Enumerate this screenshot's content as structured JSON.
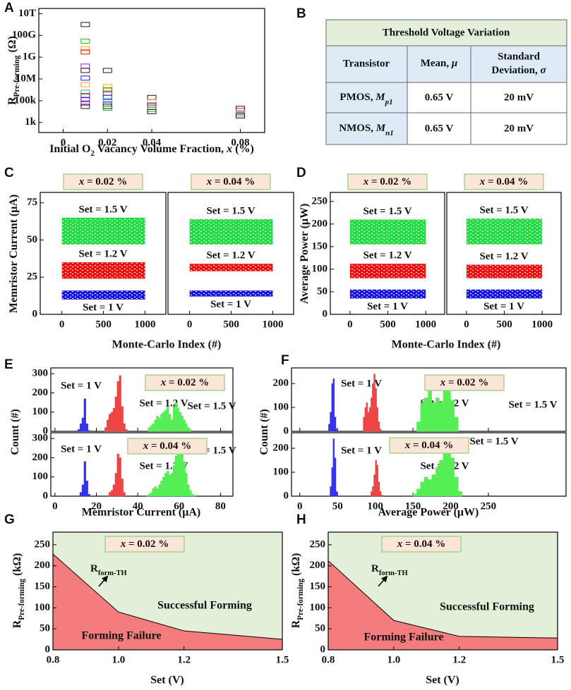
{
  "table": {
    "panel_label": "B",
    "title": "Threshold Voltage Variation",
    "columns": [
      {
        "text": "Transistor"
      },
      {
        "text": "Mean, ",
        "symbol": "μ"
      },
      {
        "text": "Standard",
        "text2": "Deviation, ",
        "symbol": "σ"
      }
    ],
    "rows": [
      {
        "name": "PMOS, ",
        "symbol": "M",
        "sub": "p1",
        "mean": "0.65 V",
        "sd": "20 mV"
      },
      {
        "name": "NMOS, ",
        "symbol": "M",
        "sub": "n1",
        "mean": "0.65 V",
        "sd": "20 mV"
      }
    ]
  },
  "chart_data": [
    {
      "type": "scatter",
      "panel_label": "A",
      "log_y": true,
      "y_label": "R",
      "y_label_sub": "Pre-forming",
      "y_label_unit": " (Ω)",
      "x_label": [
        "Initial O",
        "2",
        " Vacancy Volume Fraction, ",
        "x",
        " (%)"
      ],
      "xlim": [
        -0.011,
        0.091
      ],
      "xticks": [
        0,
        0.02,
        0.04,
        0.08
      ],
      "ylim": [
        120,
        30000000000000
      ],
      "yticks": [
        {
          "value": 1000,
          "label": "1k"
        },
        {
          "value": 100000,
          "label": "100k"
        },
        {
          "value": 10000000,
          "label": "10M"
        },
        {
          "value": 1000000000,
          "label": "1G"
        },
        {
          "value": 100000000000,
          "label": "100G"
        },
        {
          "value": 10000000000000,
          "label": "10T"
        }
      ],
      "x": [
        0.01,
        0.01,
        0.01,
        0.01,
        0.01,
        0.01,
        0.01,
        0.01,
        0.01,
        0.01,
        0.01,
        0.01,
        0.01,
        0.02,
        0.02,
        0.02,
        0.02,
        0.02,
        0.02,
        0.02,
        0.02,
        0.02,
        0.04,
        0.04,
        0.04,
        0.04,
        0.04,
        0.04,
        0.08,
        0.08,
        0.08,
        0.08,
        0.08
      ],
      "y": [
        1000000000000,
        30000000000,
        6000000000,
        3000000000,
        150000000,
        60000000,
        12000000,
        3000000,
        600000,
        300000,
        130000,
        60000,
        30000,
        60000000,
        2000000,
        1000000,
        500000,
        200000,
        100000,
        50000,
        30000,
        20000,
        200000,
        80000,
        40000,
        25000,
        16000,
        10000,
        20000,
        13000,
        8000,
        6000,
        4000
      ],
      "colors": [
        "#000000",
        "#00aa00",
        "#ff9900",
        "#cc0000",
        "#9900cc",
        "#000000",
        "#0000ff",
        "#ff9900",
        "#00aaaa",
        "#cc0000",
        "#0000ff",
        "#9900cc",
        "#000000",
        "#000000",
        "#ff9900",
        "#00aa00",
        "#cc0000",
        "#0000ff",
        "#00aaaa",
        "#9900cc",
        "#000000",
        "#00aa00",
        "#000000",
        "#ff9900",
        "#0000ff",
        "#cc0000",
        "#00aa00",
        "#000000",
        "#000000",
        "#9900cc",
        "#ff9900",
        "#00aaaa",
        "#000000"
      ]
    },
    {
      "type": "strip",
      "panel_label": "C",
      "annotation_var": "x",
      "y_label": "Memristor Current (μA)",
      "x_label": "Monte-Carlo Index (#)",
      "xlim": [
        -260,
        1250
      ],
      "xticks": [
        0,
        500,
        1000
      ],
      "ylim": [
        0,
        82
      ],
      "yticks": [
        0,
        25,
        50,
        75
      ],
      "subplots": [
        {
          "annotation": " = 0.02 %",
          "bands": [
            {
              "label": "Set = 1.5 V",
              "color": "#22dd44",
              "range": [
                47,
                65
              ]
            },
            {
              "label": "Set = 1.2 V",
              "color": "#ee1111",
              "range": [
                24,
                35
              ]
            },
            {
              "label": "Set = 1 V",
              "color": "#1a1ae0",
              "range": [
                10,
                16
              ]
            }
          ]
        },
        {
          "annotation": " = 0.04 %",
          "bands": [
            {
              "label": "Set = 1.5 V",
              "color": "#22dd44",
              "range": [
                47,
                64
              ]
            },
            {
              "label": "Set = 1.2 V",
              "color": "#ee1111",
              "range": [
                29,
                34
              ]
            },
            {
              "label": "Set = 1 V",
              "color": "#1a1ae0",
              "range": [
                12,
                16
              ]
            }
          ]
        }
      ]
    },
    {
      "type": "strip",
      "panel_label": "D",
      "annotation_var": "x",
      "y_label": "Average Power (μW)",
      "x_label": "Monte-Carlo Index (#)",
      "xlim": [
        -260,
        1250
      ],
      "xticks": [
        0,
        500,
        1000
      ],
      "ylim": [
        0,
        270
      ],
      "yticks": [
        0,
        50,
        100,
        150,
        200,
        250
      ],
      "subplots": [
        {
          "annotation": " = 0.02 %",
          "bands": [
            {
              "label": "Set = 1.5 V",
              "color": "#22dd44",
              "range": [
                155,
                210
              ]
            },
            {
              "label": "Set = 1.2 V",
              "color": "#ee1111",
              "range": [
                80,
                112
              ]
            },
            {
              "label": "Set = 1 V",
              "color": "#1a1ae0",
              "range": [
                35,
                55
              ]
            }
          ]
        },
        {
          "annotation": " = 0.04 %",
          "bands": [
            {
              "label": "Set = 1.5 V",
              "color": "#22dd44",
              "range": [
                155,
                212
              ]
            },
            {
              "label": "Set = 1.2 V",
              "color": "#ee1111",
              "range": [
                80,
                110
              ]
            },
            {
              "label": "Set = 1 V",
              "color": "#1a1ae0",
              "range": [
                35,
                55
              ]
            }
          ]
        }
      ]
    },
    {
      "type": "histogram",
      "panel_label": "E",
      "annotation_var": "x",
      "y_label": "Count (#)",
      "x_label": "Memristor Current (μA)",
      "xlim": [
        -2,
        86
      ],
      "xticks": [
        0,
        20,
        40,
        60,
        80
      ],
      "ylim": [
        0,
        330
      ],
      "yticks": [
        0,
        100,
        200,
        300
      ],
      "subplots": [
        {
          "annotation": " = 0.02 %",
          "series": [
            {
              "name": "Set = 1 V",
              "color": "#3333ee",
              "bins": [
                11,
                12,
                13,
                14,
                15,
                16,
                17
              ],
              "counts": [
                10,
                40,
                70,
                170,
                40,
                5
              ]
            },
            {
              "name": "Set = 1.2 V",
              "color": "#ee4444",
              "bins": [
                24,
                25,
                26,
                27,
                28,
                29,
                30,
                31,
                32,
                33,
                34,
                35
              ],
              "counts": [
                20,
                60,
                90,
                100,
                120,
                180,
                260,
                290,
                130,
                40,
                10
              ]
            },
            {
              "name": "Set = 1.5 V",
              "color": "#55ee55",
              "bins": [
                45,
                46,
                47,
                48,
                49,
                50,
                51,
                52,
                53,
                54,
                55,
                56,
                57,
                58,
                59,
                60,
                61,
                62,
                63,
                64,
                65,
                66
              ],
              "counts": [
                20,
                30,
                40,
                60,
                80,
                70,
                90,
                100,
                110,
                130,
                90,
                60,
                130,
                150,
                120,
                100,
                80,
                60,
                40,
                20,
                10
              ]
            }
          ]
        },
        {
          "annotation": " = 0.04 %",
          "series": [
            {
              "name": "Set = 1 V",
              "color": "#3333ee",
              "bins": [
                12,
                13,
                14,
                15,
                16,
                17
              ],
              "counts": [
                20,
                60,
                180,
                80,
                10
              ]
            },
            {
              "name": "Set = 1.2 V",
              "color": "#ee4444",
              "bins": [
                26,
                27,
                28,
                29,
                30,
                31,
                32,
                33,
                34
              ],
              "counts": [
                20,
                30,
                60,
                120,
                220,
                200,
                90,
                20
              ]
            },
            {
              "name": "Set = 1.5 V",
              "color": "#55ee55",
              "bins": [
                44,
                45,
                46,
                47,
                48,
                49,
                50,
                51,
                52,
                53,
                54,
                55,
                56,
                57,
                58,
                59,
                60,
                61,
                62,
                63,
                64,
                65,
                66,
                67,
                68
              ],
              "counts": [
                5,
                10,
                20,
                40,
                50,
                40,
                60,
                80,
                100,
                120,
                130,
                110,
                120,
                160,
                210,
                230,
                240,
                220,
                180,
                120,
                60,
                30,
                10,
                5
              ]
            }
          ]
        }
      ]
    },
    {
      "type": "histogram",
      "panel_label": "F",
      "annotation_var": "x",
      "y_label": "Count (#)",
      "x_label": "Average Power (μW)",
      "xlim": [
        -11,
        353
      ],
      "xticks": [
        0,
        50,
        100,
        150,
        200,
        250
      ],
      "ylim": [
        0,
        265
      ],
      "yticks": [
        0,
        100,
        200
      ],
      "subplots": [
        {
          "annotation": " = 0.02 %",
          "series": [
            {
              "name": "Set = 1 V",
              "color": "#3333ee",
              "bins": [
                38,
                40,
                42,
                44,
                46,
                48,
                50
              ],
              "counts": [
                30,
                80,
                200,
                220,
                60,
                10
              ]
            },
            {
              "name": "Set = 1.2 V",
              "color": "#ee4444",
              "bins": [
                84,
                86,
                88,
                90,
                92,
                94,
                96,
                98,
                100,
                102,
                104,
                106,
                108
              ],
              "counts": [
                60,
                100,
                120,
                80,
                100,
                140,
                200,
                240,
                180,
                100,
                40,
                10
              ]
            },
            {
              "name": "Set = 1.5 V",
              "color": "#55ee55",
              "bins": [
                155,
                160,
                165,
                170,
                175,
                180,
                185,
                190,
                195,
                200,
                205,
                210
              ],
              "counts": [
                40,
                120,
                140,
                170,
                120,
                140,
                120,
                180,
                200,
                130,
                60
              ]
            }
          ]
        },
        {
          "annotation": " = 0.04 %",
          "series": [
            {
              "name": "Set = 1 V",
              "color": "#3333ee",
              "bins": [
                40,
                42,
                44,
                46,
                48,
                50
              ],
              "counts": [
                40,
                120,
                240,
                160,
                20
              ]
            },
            {
              "name": "Set = 1.2 V",
              "color": "#ee4444",
              "bins": [
                94,
                96,
                98,
                100,
                102,
                104,
                106,
                108,
                110
              ],
              "counts": [
                20,
                40,
                90,
                150,
                130,
                60,
                20,
                5
              ]
            },
            {
              "name": "Set = 1.5 V",
              "color": "#55ee55",
              "bins": [
                150,
                155,
                160,
                165,
                170,
                175,
                180,
                185,
                190,
                195,
                200,
                205,
                210,
                215
              ],
              "counts": [
                10,
                30,
                60,
                80,
                70,
                90,
                120,
                150,
                180,
                200,
                160,
                80,
                20
              ]
            }
          ]
        }
      ]
    },
    {
      "type": "area",
      "panel_label": "G",
      "annotation_var": "x",
      "annotation": " = 0.02 %",
      "y_label": "R",
      "y_label_sub": "Pre-forming",
      "y_label_unit": " (kΩ)",
      "x_label": "Set (V)",
      "line_label": "R",
      "line_label_sub": "form-TH",
      "above_label": "Successful Forming",
      "below_label": "Forming Failure",
      "above_color": "#e2f0d9",
      "below_color": "#f47c7c",
      "xlim": [
        0.8,
        1.5
      ],
      "xticks": [
        0.8,
        {
          "value": 1,
          "label": "1.0"
        },
        1.2,
        1.5
      ],
      "ylim": [
        0,
        280
      ],
      "yticks": [
        0,
        50,
        100,
        150,
        200,
        250
      ],
      "x": [
        0.8,
        1.0,
        1.2,
        1.5
      ],
      "values": [
        228,
        90,
        45,
        25
      ]
    },
    {
      "type": "area",
      "panel_label": "H",
      "annotation_var": "x",
      "annotation": " = 0.04 %",
      "y_label": "R",
      "y_label_sub": "Pre-forming",
      "y_label_unit": " (kΩ)",
      "x_label": "Set (V)",
      "line_label": "R",
      "line_label_sub": "form-TH",
      "above_label": "Successful Forming",
      "below_label": "Forming Failure",
      "above_color": "#e2f0d9",
      "below_color": "#f47c7c",
      "xlim": [
        0.8,
        1.5
      ],
      "xticks": [
        0.8,
        {
          "value": 1,
          "label": "1.0"
        },
        1.2,
        1.5
      ],
      "ylim": [
        0,
        280
      ],
      "yticks": [
        0,
        50,
        100,
        150,
        200,
        250
      ],
      "x": [
        0.8,
        1.0,
        1.2,
        1.5
      ],
      "values": [
        212,
        70,
        32,
        28
      ]
    }
  ]
}
